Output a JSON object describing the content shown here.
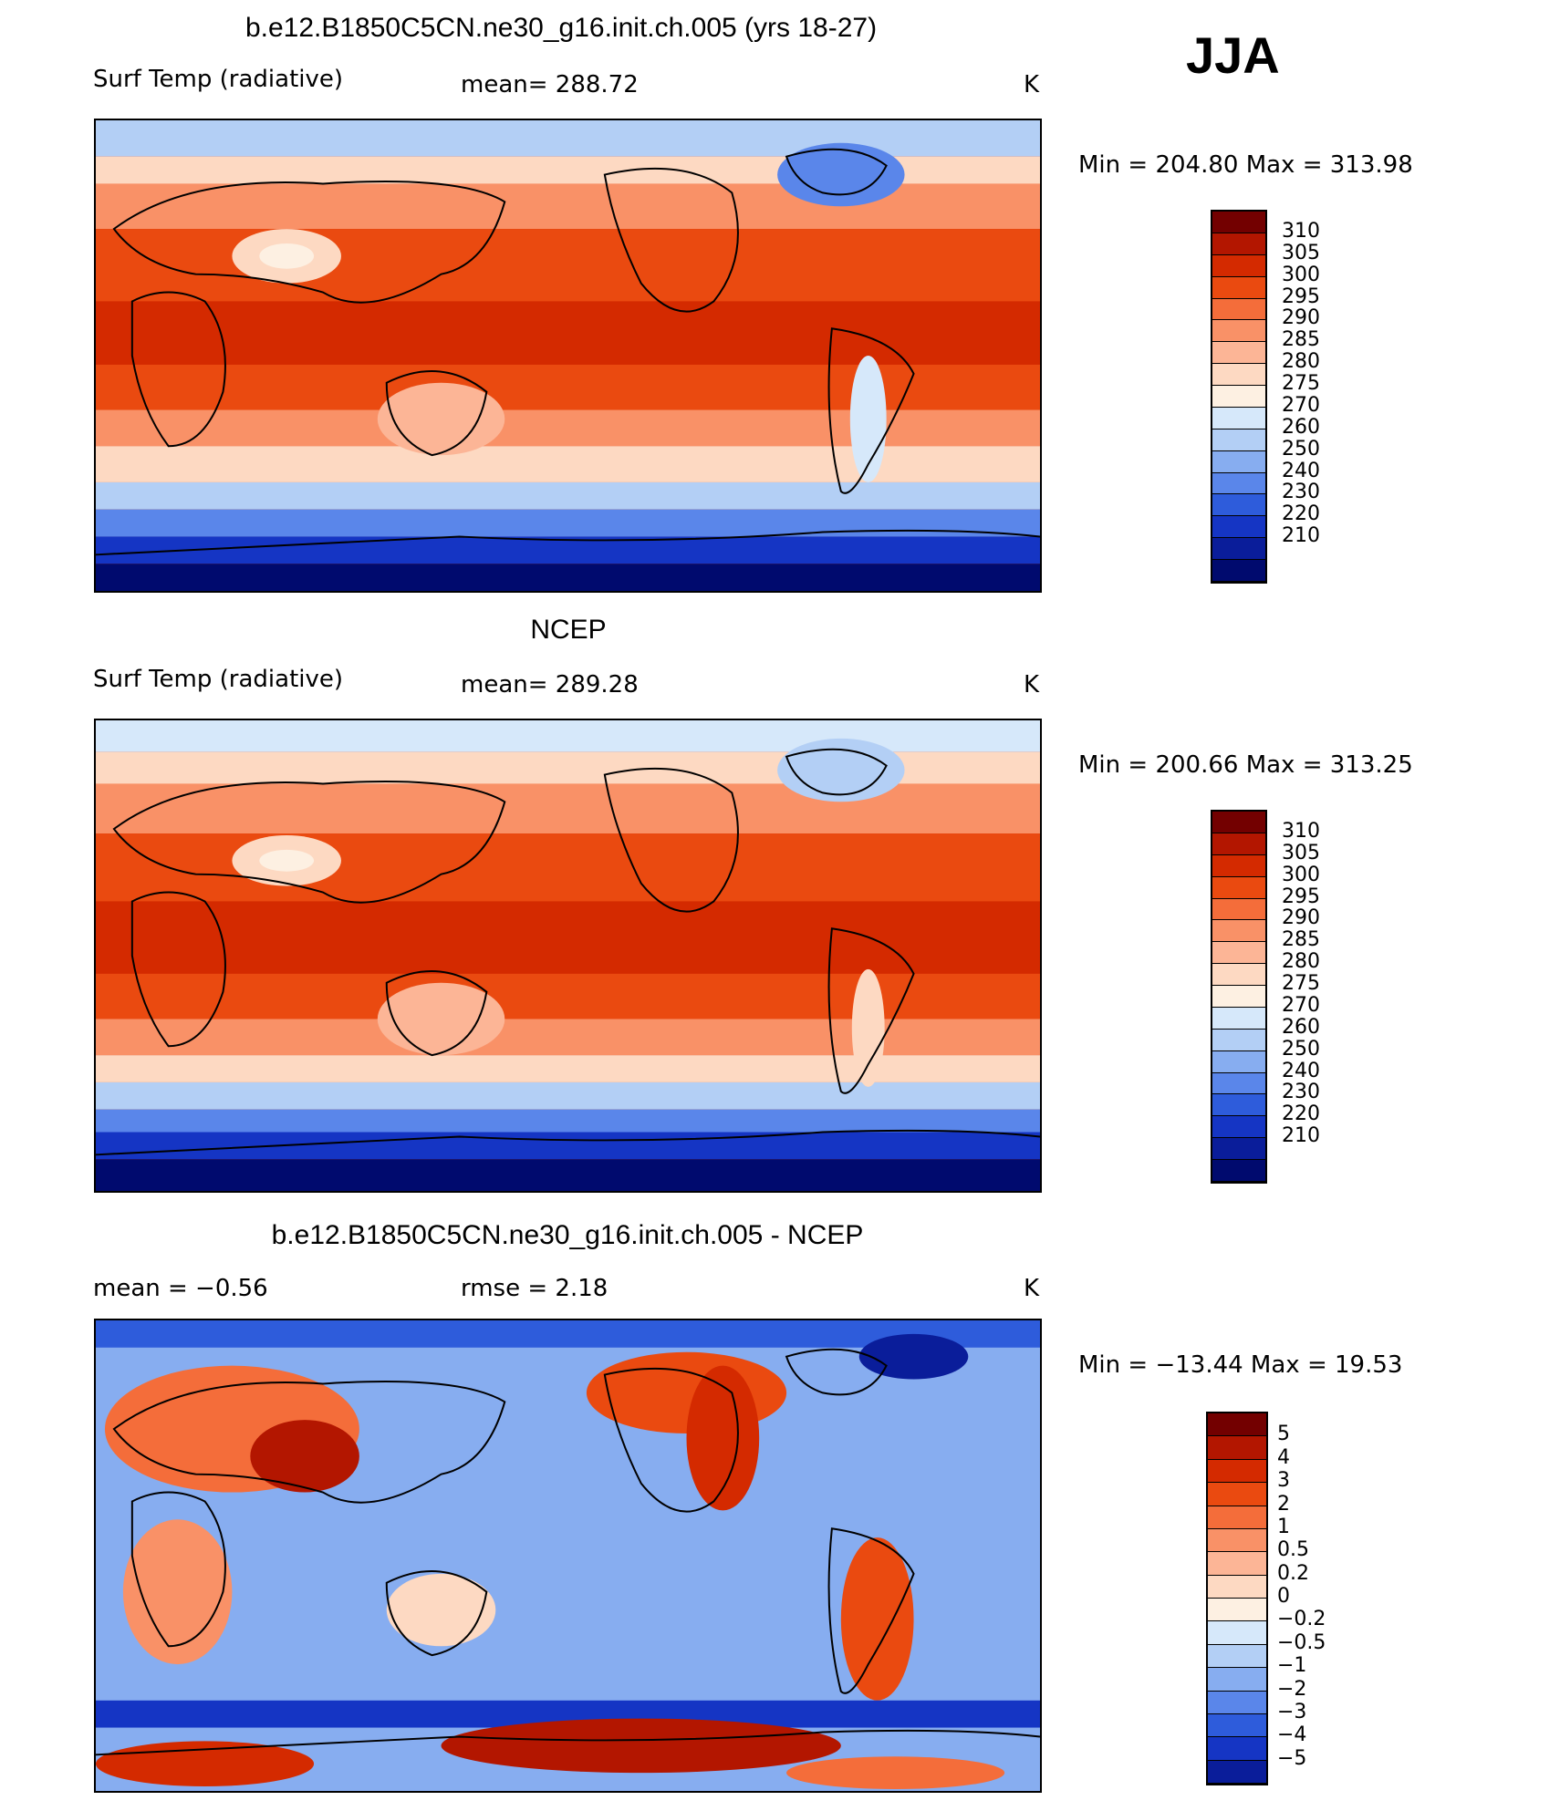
{
  "season": "JJA",
  "chart_data": [
    {
      "type": "heatmap",
      "title": "b.e12.B1850C5CN.ne30_g16.init.ch.005 (yrs 18-27)",
      "left_label": "Surf Temp (radiative)",
      "center_label": "mean= 288.72",
      "units": "K",
      "min_max": "Min = 204.80 Max = 313.98",
      "summary": {
        "mean": 288.72,
        "min": 204.8,
        "max": 313.98
      },
      "colorbar_ticks": [
        "310",
        "305",
        "300",
        "295",
        "290",
        "285",
        "280",
        "275",
        "270",
        "260",
        "250",
        "240",
        "230",
        "220",
        "210"
      ],
      "colorbar_colors": [
        "#730000",
        "#b31600",
        "#d42a00",
        "#ea4a10",
        "#f46d3a",
        "#f99167",
        "#fcb596",
        "#fdd9c2",
        "#fdf0e2",
        "#d6e8fa",
        "#b3cff5",
        "#87adf0",
        "#5a86ea",
        "#2e5cdb",
        "#1535c4",
        "#0a1d9a",
        "#000a6e"
      ]
    },
    {
      "type": "heatmap",
      "title": "NCEP",
      "left_label": "Surf Temp (radiative)",
      "center_label": "mean= 289.28",
      "units": "K",
      "min_max": "Min = 200.66 Max = 313.25",
      "summary": {
        "mean": 289.28,
        "min": 200.66,
        "max": 313.25
      },
      "colorbar_ticks": [
        "310",
        "305",
        "300",
        "295",
        "290",
        "285",
        "280",
        "275",
        "270",
        "260",
        "250",
        "240",
        "230",
        "220",
        "210"
      ],
      "colorbar_colors": [
        "#730000",
        "#b31600",
        "#d42a00",
        "#ea4a10",
        "#f46d3a",
        "#f99167",
        "#fcb596",
        "#fdd9c2",
        "#fdf0e2",
        "#d6e8fa",
        "#b3cff5",
        "#87adf0",
        "#5a86ea",
        "#2e5cdb",
        "#1535c4",
        "#0a1d9a",
        "#000a6e"
      ]
    },
    {
      "type": "heatmap",
      "title": "b.e12.B1850C5CN.ne30_g16.init.ch.005 - NCEP",
      "left_label": "mean = −0.56",
      "center_label": "rmse = 2.18",
      "units": "K",
      "min_max": "Min = −13.44 Max = 19.53",
      "summary": {
        "mean": -0.56,
        "rmse": 2.18,
        "min": -13.44,
        "max": 19.53
      },
      "colorbar_ticks": [
        "5",
        "4",
        "3",
        "2",
        "1",
        "0.5",
        "0.2",
        "0",
        "−0.2",
        "−0.5",
        "−1",
        "−2",
        "−3",
        "−4",
        "−5"
      ],
      "colorbar_colors": [
        "#730000",
        "#b31600",
        "#d42a00",
        "#ea4a10",
        "#f46d3a",
        "#f99167",
        "#fcb596",
        "#fdd9c2",
        "#fdf0e2",
        "#d6e8fa",
        "#b3cff5",
        "#87adf0",
        "#5a86ea",
        "#2e5cdb",
        "#1535c4",
        "#0a1d9a"
      ]
    }
  ]
}
